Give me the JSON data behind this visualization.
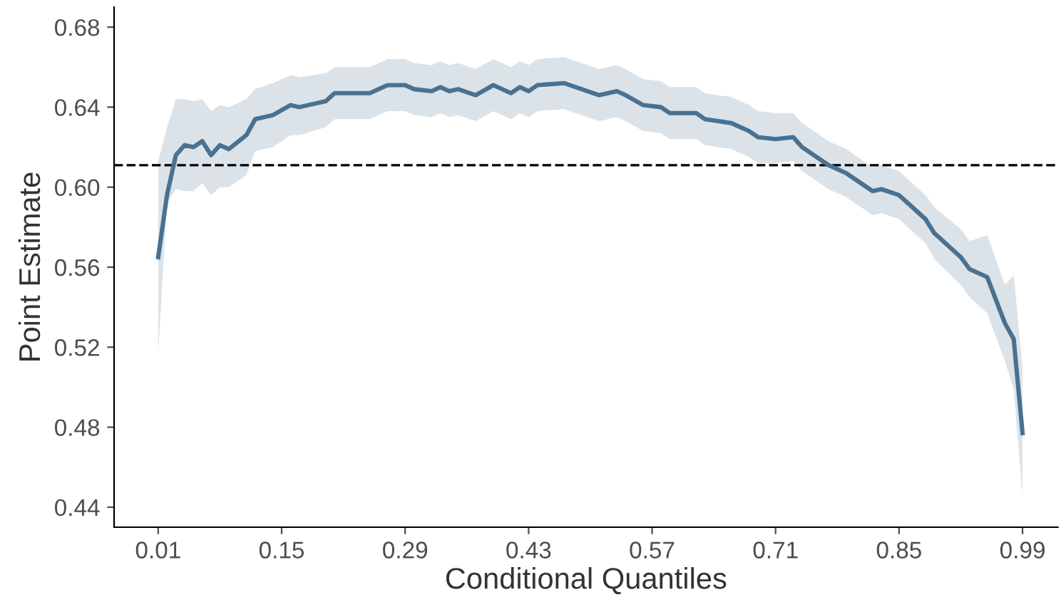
{
  "chart_data": {
    "type": "line",
    "xlabel": "Conditional Quantiles",
    "ylabel": "Point Estimate",
    "x": [
      0.01,
      0.02,
      0.03,
      0.04,
      0.05,
      0.06,
      0.07,
      0.08,
      0.09,
      0.11,
      0.12,
      0.14,
      0.16,
      0.17,
      0.2,
      0.21,
      0.25,
      0.27,
      0.29,
      0.3,
      0.32,
      0.33,
      0.34,
      0.35,
      0.37,
      0.39,
      0.41,
      0.42,
      0.43,
      0.44,
      0.47,
      0.49,
      0.51,
      0.53,
      0.54,
      0.56,
      0.58,
      0.59,
      0.62,
      0.63,
      0.66,
      0.68,
      0.69,
      0.71,
      0.73,
      0.74,
      0.77,
      0.79,
      0.81,
      0.82,
      0.83,
      0.85,
      0.88,
      0.89,
      0.92,
      0.93,
      0.95,
      0.97,
      0.98,
      0.99
    ],
    "series": [
      {
        "color": "#4a7190",
        "values": [
          0.565,
          0.596,
          0.616,
          0.621,
          0.62,
          0.623,
          0.616,
          0.621,
          0.619,
          0.626,
          0.634,
          0.636,
          0.641,
          0.64,
          0.643,
          0.647,
          0.647,
          0.651,
          0.651,
          0.649,
          0.648,
          0.65,
          0.648,
          0.649,
          0.646,
          0.651,
          0.647,
          0.65,
          0.648,
          0.651,
          0.652,
          0.649,
          0.646,
          0.648,
          0.646,
          0.641,
          0.64,
          0.637,
          0.637,
          0.634,
          0.632,
          0.628,
          0.625,
          0.624,
          0.625,
          0.62,
          0.611,
          0.607,
          0.601,
          0.598,
          0.599,
          0.596,
          0.584,
          0.577,
          0.565,
          0.559,
          0.555,
          0.532,
          0.524,
          0.477
        ],
        "lower": [
          0.517,
          0.592,
          0.599,
          0.598,
          0.598,
          0.602,
          0.596,
          0.6,
          0.6,
          0.606,
          0.618,
          0.62,
          0.626,
          0.626,
          0.63,
          0.634,
          0.634,
          0.638,
          0.638,
          0.636,
          0.635,
          0.637,
          0.635,
          0.636,
          0.633,
          0.638,
          0.634,
          0.637,
          0.635,
          0.638,
          0.639,
          0.636,
          0.633,
          0.635,
          0.633,
          0.628,
          0.627,
          0.624,
          0.624,
          0.621,
          0.619,
          0.615,
          0.612,
          0.612,
          0.613,
          0.608,
          0.599,
          0.595,
          0.589,
          0.586,
          0.587,
          0.584,
          0.572,
          0.564,
          0.551,
          0.545,
          0.537,
          0.513,
          0.499,
          0.445
        ],
        "upper": [
          0.613,
          0.63,
          0.644,
          0.644,
          0.643,
          0.644,
          0.638,
          0.641,
          0.64,
          0.644,
          0.649,
          0.652,
          0.656,
          0.655,
          0.657,
          0.66,
          0.66,
          0.664,
          0.664,
          0.662,
          0.661,
          0.663,
          0.661,
          0.662,
          0.659,
          0.664,
          0.66,
          0.663,
          0.661,
          0.664,
          0.665,
          0.662,
          0.659,
          0.661,
          0.659,
          0.654,
          0.653,
          0.65,
          0.65,
          0.647,
          0.645,
          0.641,
          0.638,
          0.637,
          0.637,
          0.632,
          0.623,
          0.619,
          0.613,
          0.61,
          0.611,
          0.608,
          0.596,
          0.59,
          0.579,
          0.573,
          0.576,
          0.551,
          0.556,
          0.51
        ]
      }
    ],
    "xlim": [
      -0.04,
      1.03
    ],
    "ylim": [
      0.43,
      0.69
    ],
    "xticks": [
      0.01,
      0.15,
      0.29,
      0.43,
      0.57,
      0.71,
      0.85,
      0.99
    ],
    "yticks": [
      0.44,
      0.48,
      0.52,
      0.56,
      {
        "value": 0.6,
        "label": "0.60"
      },
      0.64,
      0.68
    ],
    "ref_lines": [
      {
        "axis": "y",
        "value": 0.611,
        "color": "#000000",
        "line_style": "dashed"
      }
    ],
    "grid": false,
    "legend": false,
    "line_style": "solid",
    "marker": "none"
  }
}
